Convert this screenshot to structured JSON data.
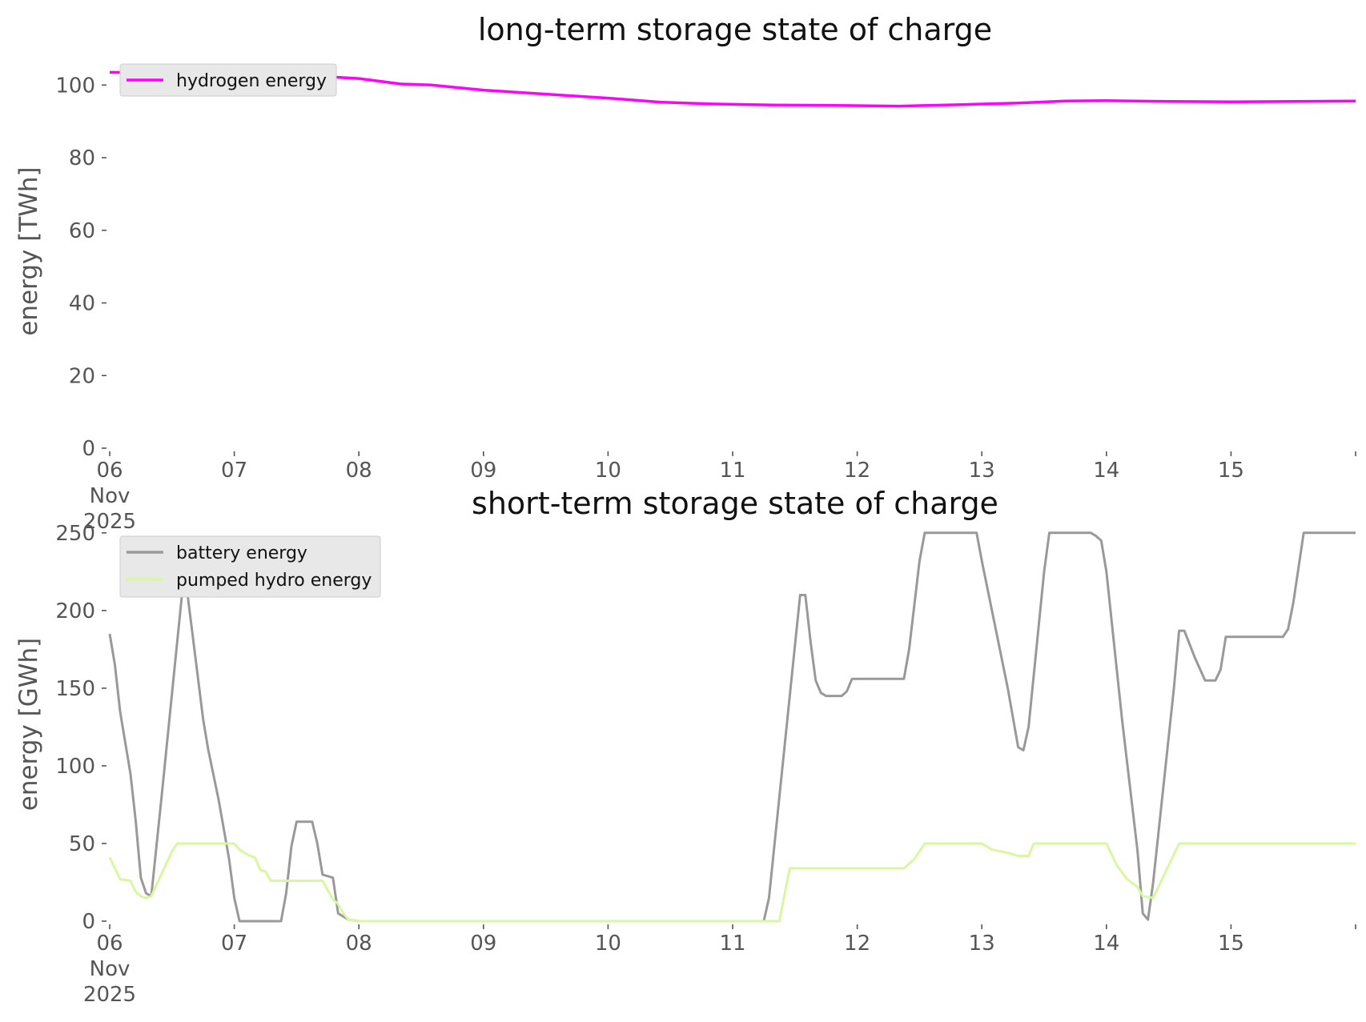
{
  "chart_data": [
    {
      "type": "line",
      "title": "long-term storage state of charge",
      "xlabel": "",
      "ylabel": "energy [TWh]",
      "x_start": "2025-11-06T00:00",
      "x_end": "2025-11-16T00:00",
      "x_ticks": [
        {
          "date": "2025-11-06",
          "label": "06",
          "sublabel": [
            "Nov",
            "2025"
          ]
        },
        {
          "date": "2025-11-07",
          "label": "07"
        },
        {
          "date": "2025-11-08",
          "label": "08"
        },
        {
          "date": "2025-11-09",
          "label": "09"
        },
        {
          "date": "2025-11-10",
          "label": "10"
        },
        {
          "date": "2025-11-11",
          "label": "11"
        },
        {
          "date": "2025-11-12",
          "label": "12"
        },
        {
          "date": "2025-11-13",
          "label": "13"
        },
        {
          "date": "2025-11-14",
          "label": "14"
        },
        {
          "date": "2025-11-15",
          "label": "15"
        },
        {
          "date": "2025-11-16",
          "label": ""
        }
      ],
      "ylim": [
        0,
        108
      ],
      "y_ticks": [
        0,
        20,
        40,
        60,
        80,
        100
      ],
      "grid": false,
      "legend": "upper-left",
      "series": [
        {
          "name": "hydrogen energy",
          "color": "#ff00ff",
          "points": [
            [
              "2025-11-06T00:00",
              103.5
            ],
            [
              "2025-11-06T12:00",
              103.4
            ],
            [
              "2025-11-07T00:00",
              103.2
            ],
            [
              "2025-11-07T12:00",
              102.8
            ],
            [
              "2025-11-08T00:00",
              101.8
            ],
            [
              "2025-11-08T08:00",
              100.3
            ],
            [
              "2025-11-08T14:00",
              100.0
            ],
            [
              "2025-11-09T00:00",
              98.6
            ],
            [
              "2025-11-09T12:00",
              97.5
            ],
            [
              "2025-11-10T00:00",
              96.4
            ],
            [
              "2025-11-10T10:00",
              95.3
            ],
            [
              "2025-11-10T20:00",
              94.8
            ],
            [
              "2025-11-11T08:00",
              94.5
            ],
            [
              "2025-11-11T20:00",
              94.4
            ],
            [
              "2025-11-12T08:00",
              94.2
            ],
            [
              "2025-11-12T20:00",
              94.6
            ],
            [
              "2025-11-13T08:00",
              95.1
            ],
            [
              "2025-11-13T16:00",
              95.6
            ],
            [
              "2025-11-14T00:00",
              95.7
            ],
            [
              "2025-11-14T12:00",
              95.5
            ],
            [
              "2025-11-15T00:00",
              95.4
            ],
            [
              "2025-11-15T12:00",
              95.5
            ],
            [
              "2025-11-16T00:00",
              95.6
            ]
          ]
        }
      ]
    },
    {
      "type": "line",
      "title": "short-term storage state of charge",
      "xlabel": "",
      "ylabel": "energy [GWh]",
      "x_start": "2025-11-06T00:00",
      "x_end": "2025-11-16T00:00",
      "x_ticks": [
        {
          "date": "2025-11-06",
          "label": "06",
          "sublabel": [
            "Nov",
            "2025"
          ]
        },
        {
          "date": "2025-11-07",
          "label": "07"
        },
        {
          "date": "2025-11-08",
          "label": "08"
        },
        {
          "date": "2025-11-09",
          "label": "09"
        },
        {
          "date": "2025-11-10",
          "label": "10"
        },
        {
          "date": "2025-11-11",
          "label": "11"
        },
        {
          "date": "2025-11-12",
          "label": "12"
        },
        {
          "date": "2025-11-13",
          "label": "13"
        },
        {
          "date": "2025-11-14",
          "label": "14"
        },
        {
          "date": "2025-11-15",
          "label": "15"
        },
        {
          "date": "2025-11-16",
          "label": ""
        }
      ],
      "ylim": [
        0,
        253
      ],
      "y_ticks": [
        0,
        50,
        100,
        150,
        200,
        250
      ],
      "grid": false,
      "legend": "upper-left",
      "series": [
        {
          "name": "battery energy",
          "color": "#999999",
          "points": [
            [
              "2025-11-06T00:00",
              185
            ],
            [
              "2025-11-06T01:00",
              165
            ],
            [
              "2025-11-06T02:00",
              135
            ],
            [
              "2025-11-06T04:00",
              95
            ],
            [
              "2025-11-06T05:00",
              65
            ],
            [
              "2025-11-06T06:00",
              28
            ],
            [
              "2025-11-06T07:00",
              18
            ],
            [
              "2025-11-06T08:00",
              16
            ],
            [
              "2025-11-06T10:00",
              80
            ],
            [
              "2025-11-06T14:00",
              213
            ],
            [
              "2025-11-06T15:00",
              210
            ],
            [
              "2025-11-06T18:00",
              130
            ],
            [
              "2025-11-06T19:00",
              110
            ],
            [
              "2025-11-06T21:00",
              78
            ],
            [
              "2025-11-06T23:00",
              40
            ],
            [
              "2025-11-07T00:00",
              15
            ],
            [
              "2025-11-07T01:00",
              0
            ],
            [
              "2025-11-07T09:00",
              0
            ],
            [
              "2025-11-07T10:00",
              18
            ],
            [
              "2025-11-07T11:00",
              48
            ],
            [
              "2025-11-07T12:00",
              64
            ],
            [
              "2025-11-07T15:00",
              64
            ],
            [
              "2025-11-07T16:00",
              50
            ],
            [
              "2025-11-07T17:00",
              30
            ],
            [
              "2025-11-07T19:00",
              28
            ],
            [
              "2025-11-07T20:00",
              5
            ],
            [
              "2025-11-07T22:00",
              1
            ],
            [
              "2025-11-08T00:00",
              0
            ],
            [
              "2025-11-11T06:00",
              0
            ],
            [
              "2025-11-11T07:00",
              15
            ],
            [
              "2025-11-11T13:00",
              210
            ],
            [
              "2025-11-11T14:00",
              210
            ],
            [
              "2025-11-11T15:00",
              180
            ],
            [
              "2025-11-11T16:00",
              155
            ],
            [
              "2025-11-11T17:00",
              147
            ],
            [
              "2025-11-11T18:00",
              145
            ],
            [
              "2025-11-11T21:00",
              145
            ],
            [
              "2025-11-11T22:00",
              148
            ],
            [
              "2025-11-11T23:00",
              156
            ],
            [
              "2025-11-12T09:00",
              156
            ],
            [
              "2025-11-12T10:00",
              175
            ],
            [
              "2025-11-12T12:00",
              232
            ],
            [
              "2025-11-12T13:00",
              250
            ],
            [
              "2025-11-12T23:00",
              250
            ],
            [
              "2025-11-13T00:00",
              232
            ],
            [
              "2025-11-13T05:00",
              150
            ],
            [
              "2025-11-13T07:00",
              112
            ],
            [
              "2025-11-13T08:00",
              110
            ],
            [
              "2025-11-13T09:00",
              125
            ],
            [
              "2025-11-13T12:00",
              225
            ],
            [
              "2025-11-13T13:00",
              250
            ],
            [
              "2025-11-13T21:00",
              250
            ],
            [
              "2025-11-13T22:00",
              248
            ],
            [
              "2025-11-13T23:00",
              245
            ],
            [
              "2025-11-14T00:00",
              225
            ],
            [
              "2025-11-14T03:00",
              130
            ],
            [
              "2025-11-14T06:00",
              45
            ],
            [
              "2025-11-14T07:00",
              5
            ],
            [
              "2025-11-14T08:00",
              1
            ],
            [
              "2025-11-14T09:00",
              25
            ],
            [
              "2025-11-14T13:00",
              150
            ],
            [
              "2025-11-14T14:00",
              187
            ],
            [
              "2025-11-14T15:00",
              187
            ],
            [
              "2025-11-14T17:00",
              170
            ],
            [
              "2025-11-14T19:00",
              155
            ],
            [
              "2025-11-14T21:00",
              155
            ],
            [
              "2025-11-14T22:00",
              162
            ],
            [
              "2025-11-14T23:00",
              183
            ],
            [
              "2025-11-15T10:00",
              183
            ],
            [
              "2025-11-15T11:00",
              188
            ],
            [
              "2025-11-15T12:00",
              205
            ],
            [
              "2025-11-15T14:00",
              250
            ],
            [
              "2025-11-16T00:00",
              250
            ]
          ]
        },
        {
          "name": "pumped hydro energy",
          "color": "#d9f7a1",
          "points": [
            [
              "2025-11-06T00:00",
              41
            ],
            [
              "2025-11-06T02:00",
              27
            ],
            [
              "2025-11-06T04:00",
              26
            ],
            [
              "2025-11-06T05:00",
              19
            ],
            [
              "2025-11-06T06:00",
              16
            ],
            [
              "2025-11-06T07:00",
              15
            ],
            [
              "2025-11-06T08:00",
              16
            ],
            [
              "2025-11-06T12:00",
              45
            ],
            [
              "2025-11-06T13:00",
              50
            ],
            [
              "2025-11-07T00:00",
              50
            ],
            [
              "2025-11-07T01:00",
              46
            ],
            [
              "2025-11-07T03:00",
              42
            ],
            [
              "2025-11-07T04:00",
              41
            ],
            [
              "2025-11-07T05:00",
              33
            ],
            [
              "2025-11-07T06:00",
              32
            ],
            [
              "2025-11-07T07:00",
              26
            ],
            [
              "2025-11-07T17:00",
              26
            ],
            [
              "2025-11-07T18:00",
              20
            ],
            [
              "2025-11-07T19:00",
              14
            ],
            [
              "2025-11-07T20:00",
              11
            ],
            [
              "2025-11-07T21:00",
              5
            ],
            [
              "2025-11-07T22:00",
              1
            ],
            [
              "2025-11-08T00:00",
              0
            ],
            [
              "2025-11-11T09:00",
              0
            ],
            [
              "2025-11-11T11:00",
              34
            ],
            [
              "2025-11-12T09:00",
              34
            ],
            [
              "2025-11-12T11:00",
              40
            ],
            [
              "2025-11-12T13:00",
              50
            ],
            [
              "2025-11-13T00:00",
              50
            ],
            [
              "2025-11-13T02:00",
              46
            ],
            [
              "2025-11-13T05:00",
              44
            ],
            [
              "2025-11-13T07:00",
              42
            ],
            [
              "2025-11-13T09:00",
              42
            ],
            [
              "2025-11-13T10:00",
              50
            ],
            [
              "2025-11-14T00:00",
              50
            ],
            [
              "2025-11-14T02:00",
              36
            ],
            [
              "2025-11-14T04:00",
              27
            ],
            [
              "2025-11-14T06:00",
              22
            ],
            [
              "2025-11-14T07:00",
              16
            ],
            [
              "2025-11-14T09:00",
              15
            ],
            [
              "2025-11-14T14:00",
              50
            ],
            [
              "2025-11-16T00:00",
              50
            ]
          ]
        }
      ]
    }
  ]
}
